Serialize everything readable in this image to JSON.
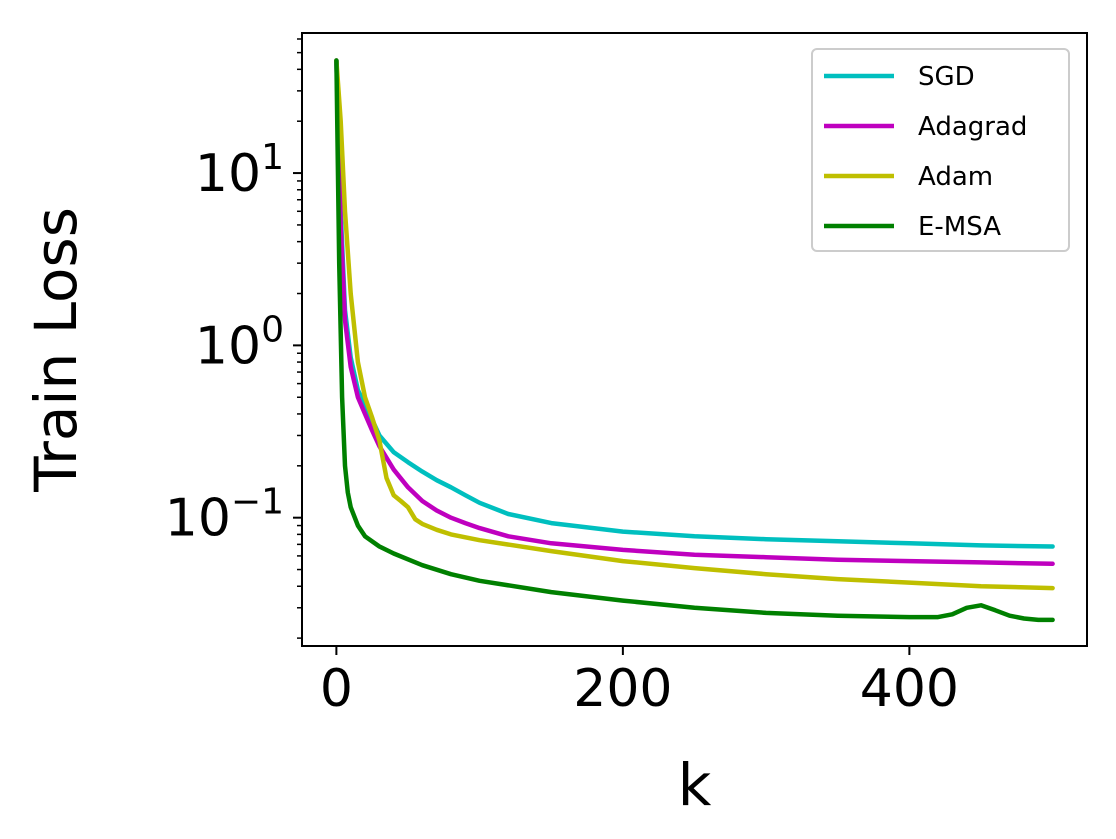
{
  "chart_data": {
    "type": "line",
    "title": "",
    "xlabel": "k",
    "ylabel": "Train Loss",
    "xlim": [
      -24,
      524
    ],
    "ylim": [
      0.018,
      65
    ],
    "yscale": "log",
    "xticks": [
      0,
      200,
      400
    ],
    "x_tick_labels": [
      "0",
      "200",
      "400"
    ],
    "yticks": [
      0.1,
      1,
      10
    ],
    "y_tick_labels": [
      {
        "base": "10",
        "exp": "−1"
      },
      {
        "base": "10",
        "exp": "0"
      },
      {
        "base": "10",
        "exp": "1"
      }
    ],
    "grid": false,
    "legend_position": "top-right",
    "series": [
      {
        "name": "SGD",
        "color": "#00bfbf",
        "x": [
          0,
          3,
          6,
          10,
          15,
          20,
          25,
          30,
          40,
          50,
          60,
          70,
          80,
          90,
          100,
          120,
          150,
          200,
          250,
          300,
          350,
          400,
          450,
          500
        ],
        "y": [
          45,
          6,
          1.6,
          0.85,
          0.55,
          0.45,
          0.37,
          0.3,
          0.24,
          0.21,
          0.185,
          0.165,
          0.15,
          0.135,
          0.122,
          0.105,
          0.093,
          0.083,
          0.078,
          0.075,
          0.073,
          0.071,
          0.069,
          0.068
        ]
      },
      {
        "name": "Adagrad",
        "color": "#bf00bf",
        "x": [
          0,
          3,
          6,
          10,
          15,
          20,
          25,
          30,
          40,
          50,
          60,
          70,
          80,
          90,
          100,
          120,
          150,
          200,
          250,
          300,
          350,
          400,
          450,
          500
        ],
        "y": [
          45,
          5,
          1.4,
          0.75,
          0.5,
          0.4,
          0.32,
          0.26,
          0.19,
          0.15,
          0.125,
          0.11,
          0.1,
          0.093,
          0.087,
          0.078,
          0.071,
          0.065,
          0.061,
          0.059,
          0.057,
          0.056,
          0.055,
          0.054
        ]
      },
      {
        "name": "Adam",
        "color": "#bfbf00",
        "x": [
          0,
          3,
          6,
          10,
          15,
          20,
          25,
          30,
          35,
          40,
          45,
          50,
          55,
          60,
          70,
          80,
          100,
          150,
          200,
          250,
          300,
          350,
          400,
          450,
          500
        ],
        "y": [
          45,
          20,
          6,
          2,
          0.8,
          0.5,
          0.38,
          0.28,
          0.17,
          0.135,
          0.125,
          0.115,
          0.098,
          0.092,
          0.085,
          0.08,
          0.074,
          0.064,
          0.056,
          0.051,
          0.047,
          0.044,
          0.042,
          0.04,
          0.039
        ]
      },
      {
        "name": "E-MSA",
        "color": "#008000",
        "x": [
          0,
          2,
          4,
          6,
          8,
          10,
          15,
          20,
          30,
          40,
          60,
          80,
          100,
          150,
          200,
          250,
          300,
          350,
          400,
          420,
          430,
          440,
          450,
          460,
          470,
          480,
          490,
          500
        ],
        "y": [
          45,
          3,
          0.5,
          0.2,
          0.14,
          0.115,
          0.09,
          0.078,
          0.068,
          0.062,
          0.053,
          0.047,
          0.043,
          0.037,
          0.033,
          0.03,
          0.028,
          0.027,
          0.0265,
          0.0265,
          0.0275,
          0.03,
          0.031,
          0.029,
          0.027,
          0.026,
          0.0255,
          0.0255
        ]
      }
    ]
  }
}
